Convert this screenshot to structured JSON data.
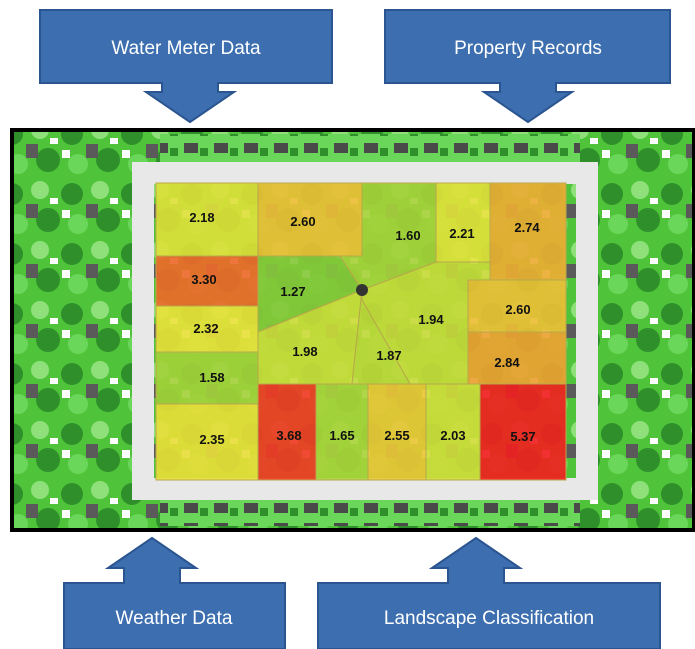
{
  "inputs": {
    "water_meter": "Water Meter Data",
    "property_records": "Property Records",
    "weather": "Weather Data",
    "landscape": "Landscape Classification"
  },
  "colors": {
    "box_fill": "#3d6fb0",
    "box_stroke": "#2b5590",
    "scale_low": "#7ec63a",
    "scale_mid": "#e8e33a",
    "scale_high": "#f02020"
  },
  "parcels": [
    {
      "id": "p1",
      "value": 2.18
    },
    {
      "id": "p2",
      "value": 2.6
    },
    {
      "id": "p3",
      "value": 1.6
    },
    {
      "id": "p4",
      "value": 2.21
    },
    {
      "id": "p5",
      "value": 2.74
    },
    {
      "id": "p6",
      "value": 3.3
    },
    {
      "id": "p7",
      "value": 1.27
    },
    {
      "id": "p8",
      "value": 1.94
    },
    {
      "id": "p9",
      "value": 2.6
    },
    {
      "id": "p10",
      "value": 2.32
    },
    {
      "id": "p11",
      "value": 1.98
    },
    {
      "id": "p12",
      "value": 1.87
    },
    {
      "id": "p13",
      "value": 2.84
    },
    {
      "id": "p14",
      "value": 1.58
    },
    {
      "id": "p15",
      "value": 2.35
    },
    {
      "id": "p16",
      "value": 3.68
    },
    {
      "id": "p17",
      "value": 1.65
    },
    {
      "id": "p18",
      "value": 2.55
    },
    {
      "id": "p19",
      "value": 2.03
    },
    {
      "id": "p20",
      "value": 5.37
    }
  ]
}
